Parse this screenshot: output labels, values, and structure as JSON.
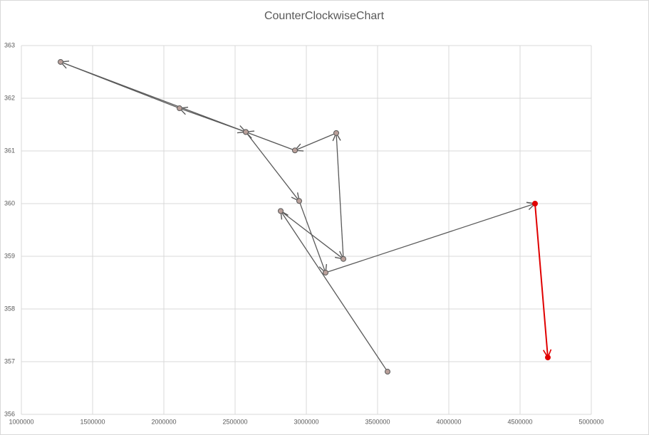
{
  "chart_data": {
    "type": "scatter-arrows",
    "title": "CounterClockwiseChart",
    "series": [
      {
        "color": "#595959",
        "last_segment_color": "#e00000",
        "x": [
          3570000,
          2820000,
          3260000,
          3210000,
          2920000,
          2575000,
          2110000,
          1275000,
          2575000,
          2950000,
          3135000,
          4605000,
          4695000
        ],
        "values": [
          356.81,
          359.86,
          358.95,
          361.34,
          361.01,
          361.36,
          361.81,
          362.69,
          361.36,
          360.05,
          358.69,
          360.0,
          357.08
        ]
      }
    ],
    "xlim": [
      1000000,
      5000000
    ],
    "xticks": [
      1000000,
      1500000,
      2000000,
      2500000,
      3000000,
      3500000,
      4000000,
      4500000,
      5000000
    ],
    "ylim": [
      356,
      363
    ],
    "yticks": [
      356,
      357,
      358,
      359,
      360,
      361,
      362,
      363
    ],
    "grid": true
  }
}
